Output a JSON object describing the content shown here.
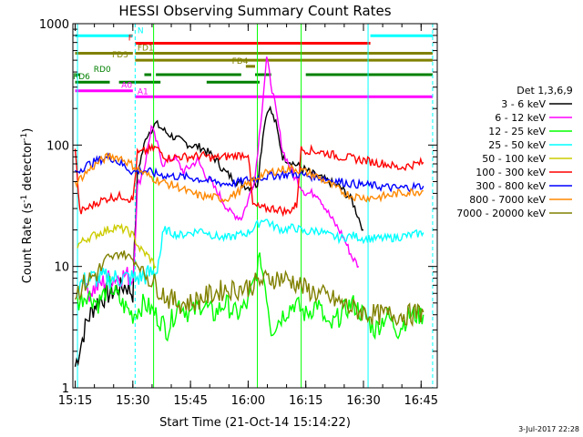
{
  "chart_data": {
    "type": "line",
    "title": "HESSI Observing Summary Count Rates",
    "xlabel": "Start Time (21-Oct-14 15:14:22)",
    "ylabel_main": "Count Rate (s",
    "ylabel_sup": "-1",
    "ylabel_mid": " detector",
    "ylabel_end": ")",
    "x_tick_labels": [
      "15:15",
      "15:30",
      "15:45",
      "16:00",
      "16:15",
      "16:30",
      "16:45"
    ],
    "x_ticks_min": [
      15.25,
      15.5,
      15.75,
      16.0,
      16.25,
      16.5,
      16.75
    ],
    "xlim_hours": [
      15.24,
      16.82
    ],
    "y_scale": "log",
    "ylim": [
      1,
      1000
    ],
    "y_tick_labels": [
      "1",
      "10",
      "100",
      "1000"
    ],
    "y_ticks": [
      1,
      10,
      100,
      1000
    ],
    "legend_title": "Det 1,3,6,9",
    "series": [
      {
        "name": "3 - 6 keV",
        "color": "#000000",
        "points": [
          [
            15.25,
            1.5
          ],
          [
            15.3,
            3.5
          ],
          [
            15.34,
            5
          ],
          [
            15.4,
            6
          ],
          [
            15.47,
            7
          ],
          [
            15.5,
            6
          ],
          [
            15.52,
            60
          ],
          [
            15.56,
            120
          ],
          [
            15.6,
            150
          ],
          [
            15.65,
            125
          ],
          [
            15.7,
            110
          ],
          [
            15.75,
            100
          ],
          [
            15.8,
            95
          ],
          [
            15.85,
            80
          ],
          [
            15.9,
            60
          ],
          [
            15.95,
            50
          ],
          [
            16.0,
            45
          ],
          [
            16.04,
            48
          ],
          [
            16.07,
            150
          ],
          [
            16.09,
            210
          ],
          [
            16.12,
            150
          ],
          [
            16.15,
            80
          ],
          [
            16.2,
            70
          ],
          [
            16.25,
            62
          ],
          [
            16.3,
            55
          ],
          [
            16.35,
            50
          ],
          [
            16.4,
            45
          ],
          [
            16.45,
            35
          ],
          [
            16.48,
            25
          ],
          [
            16.5,
            20
          ]
        ]
      },
      {
        "name": "6 - 12 keV",
        "color": "#ff00ff",
        "points": [
          [
            15.3,
            6
          ],
          [
            15.4,
            8
          ],
          [
            15.47,
            8.5
          ],
          [
            15.5,
            8
          ],
          [
            15.52,
            45
          ],
          [
            15.55,
            65
          ],
          [
            15.58,
            140
          ],
          [
            15.6,
            110
          ],
          [
            15.63,
            70
          ],
          [
            15.68,
            80
          ],
          [
            15.72,
            60
          ],
          [
            15.78,
            75
          ],
          [
            15.82,
            55
          ],
          [
            15.87,
            40
          ],
          [
            15.92,
            28
          ],
          [
            15.97,
            25
          ],
          [
            16.0,
            35
          ],
          [
            16.03,
            55
          ],
          [
            16.06,
            200
          ],
          [
            16.08,
            520
          ],
          [
            16.11,
            250
          ],
          [
            16.15,
            90
          ],
          [
            16.2,
            55
          ],
          [
            16.25,
            40
          ],
          [
            16.3,
            40
          ],
          [
            16.36,
            25
          ],
          [
            16.41,
            18
          ],
          [
            16.45,
            12
          ],
          [
            16.48,
            10
          ]
        ]
      },
      {
        "name": "12 - 25 keV",
        "color": "#00ff00",
        "points": [
          [
            15.26,
            5
          ],
          [
            15.3,
            6
          ],
          [
            15.35,
            5
          ],
          [
            15.4,
            7
          ],
          [
            15.45,
            5
          ],
          [
            15.5,
            4
          ],
          [
            15.55,
            5
          ],
          [
            15.6,
            4
          ],
          [
            15.65,
            3
          ],
          [
            15.7,
            5
          ],
          [
            15.75,
            4
          ],
          [
            15.8,
            5
          ],
          [
            15.85,
            4
          ],
          [
            15.9,
            5
          ],
          [
            15.95,
            4
          ],
          [
            16.0,
            5
          ],
          [
            16.03,
            8
          ],
          [
            16.05,
            12
          ],
          [
            16.08,
            6
          ],
          [
            16.1,
            3
          ],
          [
            16.15,
            4
          ],
          [
            16.2,
            5
          ],
          [
            16.25,
            4
          ],
          [
            16.3,
            5
          ],
          [
            16.35,
            3
          ],
          [
            16.4,
            4
          ],
          [
            16.45,
            5
          ],
          [
            16.5,
            4
          ],
          [
            16.55,
            3
          ],
          [
            16.6,
            4
          ],
          [
            16.65,
            3
          ],
          [
            16.7,
            4
          ],
          [
            16.76,
            4
          ]
        ]
      },
      {
        "name": "25 - 50 keV",
        "color": "#00ffff",
        "points": [
          [
            15.26,
            7
          ],
          [
            15.32,
            8
          ],
          [
            15.4,
            8
          ],
          [
            15.47,
            8
          ],
          [
            15.52,
            8
          ],
          [
            15.6,
            9
          ],
          [
            15.64,
            20
          ],
          [
            15.7,
            18
          ],
          [
            15.75,
            19
          ],
          [
            15.8,
            20
          ],
          [
            15.85,
            18
          ],
          [
            15.9,
            17
          ],
          [
            15.95,
            18
          ],
          [
            16.0,
            19
          ],
          [
            16.04,
            22
          ],
          [
            16.07,
            25
          ],
          [
            16.1,
            22
          ],
          [
            16.15,
            20
          ],
          [
            16.2,
            21
          ],
          [
            16.25,
            19
          ],
          [
            16.3,
            20
          ],
          [
            16.35,
            18
          ],
          [
            16.4,
            17
          ],
          [
            16.45,
            18
          ],
          [
            16.5,
            17
          ],
          [
            16.6,
            17
          ],
          [
            16.7,
            18
          ],
          [
            16.76,
            19
          ]
        ]
      },
      {
        "name": "50 - 100 keV",
        "color": "#cccc00",
        "points": [
          [
            15.26,
            15
          ],
          [
            15.3,
            17
          ],
          [
            15.36,
            19
          ],
          [
            15.42,
            21
          ],
          [
            15.47,
            20
          ],
          [
            15.5,
            18
          ],
          [
            15.53,
            14
          ],
          [
            15.57,
            12
          ],
          [
            15.6,
            10
          ]
        ]
      },
      {
        "name": "100 - 300 keV",
        "color": "#ff0000",
        "points": [
          [
            15.25,
            95
          ],
          [
            15.27,
            28
          ],
          [
            15.3,
            30
          ],
          [
            15.35,
            34
          ],
          [
            15.4,
            37
          ],
          [
            15.46,
            38
          ],
          [
            15.5,
            35
          ],
          [
            15.52,
            85
          ],
          [
            15.56,
            90
          ],
          [
            15.6,
            95
          ],
          [
            15.65,
            78
          ],
          [
            15.7,
            80
          ],
          [
            15.75,
            80
          ],
          [
            15.8,
            82
          ],
          [
            15.85,
            78
          ],
          [
            15.9,
            80
          ],
          [
            15.95,
            82
          ],
          [
            16.0,
            85
          ],
          [
            16.02,
            32
          ],
          [
            16.06,
            30
          ],
          [
            16.12,
            30
          ],
          [
            16.17,
            28
          ],
          [
            16.21,
            32
          ],
          [
            16.23,
            92
          ],
          [
            16.28,
            90
          ],
          [
            16.35,
            85
          ],
          [
            16.4,
            80
          ],
          [
            16.45,
            78
          ],
          [
            16.5,
            75
          ],
          [
            16.55,
            72
          ],
          [
            16.6,
            70
          ],
          [
            16.65,
            65
          ],
          [
            16.7,
            68
          ],
          [
            16.76,
            72
          ]
        ]
      },
      {
        "name": "300 - 800 keV",
        "color": "#0000ff",
        "points": [
          [
            15.25,
            60
          ],
          [
            15.3,
            68
          ],
          [
            15.35,
            75
          ],
          [
            15.4,
            80
          ],
          [
            15.45,
            70
          ],
          [
            15.5,
            60
          ],
          [
            15.55,
            62
          ],
          [
            15.6,
            58
          ],
          [
            15.65,
            56
          ],
          [
            15.7,
            55
          ],
          [
            15.75,
            54
          ],
          [
            15.8,
            52
          ],
          [
            15.85,
            50
          ],
          [
            15.9,
            48
          ],
          [
            15.95,
            49
          ],
          [
            16.0,
            52
          ],
          [
            16.05,
            54
          ],
          [
            16.1,
            56
          ],
          [
            16.15,
            57
          ],
          [
            16.2,
            58
          ],
          [
            16.25,
            56
          ],
          [
            16.3,
            55
          ],
          [
            16.35,
            52
          ],
          [
            16.4,
            50
          ],
          [
            16.45,
            48
          ],
          [
            16.5,
            47
          ],
          [
            16.55,
            46
          ],
          [
            16.6,
            45
          ],
          [
            16.65,
            44
          ],
          [
            16.7,
            45
          ],
          [
            16.76,
            46
          ]
        ]
      },
      {
        "name": "800 - 7000 keV",
        "color": "#ff8800",
        "points": [
          [
            15.25,
            48
          ],
          [
            15.3,
            60
          ],
          [
            15.35,
            72
          ],
          [
            15.4,
            82
          ],
          [
            15.45,
            78
          ],
          [
            15.5,
            68
          ],
          [
            15.55,
            58
          ],
          [
            15.6,
            52
          ],
          [
            15.65,
            48
          ],
          [
            15.7,
            45
          ],
          [
            15.75,
            40
          ],
          [
            15.8,
            38
          ],
          [
            15.85,
            37
          ],
          [
            15.9,
            36
          ],
          [
            15.95,
            40
          ],
          [
            16.0,
            48
          ],
          [
            16.05,
            56
          ],
          [
            16.1,
            60
          ],
          [
            16.15,
            63
          ],
          [
            16.2,
            64
          ],
          [
            16.25,
            60
          ],
          [
            16.3,
            55
          ],
          [
            16.35,
            48
          ],
          [
            16.4,
            42
          ],
          [
            16.45,
            38
          ],
          [
            16.5,
            37
          ],
          [
            16.55,
            37
          ],
          [
            16.6,
            38
          ],
          [
            16.65,
            40
          ],
          [
            16.7,
            41
          ],
          [
            16.76,
            42
          ]
        ]
      },
      {
        "name": "7000 - 20000 keV",
        "color": "#808000",
        "points": [
          [
            15.25,
            6
          ],
          [
            15.3,
            7.5
          ],
          [
            15.35,
            9
          ],
          [
            15.4,
            11.5
          ],
          [
            15.45,
            13
          ],
          [
            15.5,
            11.5
          ],
          [
            15.55,
            9
          ],
          [
            15.6,
            7
          ],
          [
            15.65,
            5.5
          ],
          [
            15.7,
            5
          ],
          [
            15.75,
            5
          ],
          [
            15.8,
            5.5
          ],
          [
            15.85,
            6
          ],
          [
            15.9,
            6.5
          ],
          [
            15.95,
            6.5
          ],
          [
            16.0,
            6.8
          ],
          [
            16.05,
            7.5
          ],
          [
            16.1,
            8
          ],
          [
            16.15,
            8
          ],
          [
            16.2,
            7.5
          ],
          [
            16.25,
            6.5
          ],
          [
            16.3,
            6
          ],
          [
            16.35,
            5.5
          ],
          [
            16.4,
            5
          ],
          [
            16.45,
            4.5
          ],
          [
            16.5,
            4.2
          ],
          [
            16.55,
            4
          ],
          [
            16.6,
            4
          ],
          [
            16.65,
            4
          ],
          [
            16.7,
            4
          ],
          [
            16.76,
            4.2
          ]
        ]
      }
    ],
    "vertical_lines": [
      {
        "x": 15.51,
        "color": "#00ffff",
        "style": "dash"
      },
      {
        "x": 16.52,
        "color": "#00ffff",
        "style": "solid"
      },
      {
        "x": 16.8,
        "color": "#00ffff",
        "style": "dash"
      },
      {
        "x": 15.59,
        "color": "#00ff00",
        "style": "solid"
      },
      {
        "x": 16.04,
        "color": "#00ff00",
        "style": "solid"
      },
      {
        "x": 16.23,
        "color": "#00ff00",
        "style": "solid"
      },
      {
        "x": 15.26,
        "color": "#00ffff",
        "style": "solid"
      }
    ],
    "flag_bars": [
      {
        "label": "N",
        "color": "#00ffff",
        "label_x": 15.52,
        "y": 795,
        "segments": [
          [
            15.25,
            15.5
          ],
          [
            16.53,
            16.8
          ]
        ]
      },
      {
        "label": "F",
        "color": "#ff0000",
        "label_x": 15.48,
        "y": 690,
        "segments": [
          [
            15.51,
            16.53
          ]
        ]
      },
      {
        "label": "FD1",
        "color": "#808000",
        "label_x": 15.52,
        "y": 570,
        "segments": [
          [
            15.25,
            15.5
          ],
          [
            15.51,
            16.8
          ]
        ]
      },
      {
        "label": "FD3",
        "color": "#808000",
        "label_x": 15.41,
        "y": 500,
        "segments": [
          [
            15.51,
            16.8
          ]
        ]
      },
      {
        "label": "FD4",
        "color": "#808000",
        "label_x": 15.93,
        "y": 445,
        "segments": [
          [
            15.99,
            16.03
          ]
        ]
      },
      {
        "label": "RD0",
        "color": "#008000",
        "label_x": 15.33,
        "y": 380,
        "segments": [
          [
            15.25,
            15.27
          ],
          [
            15.55,
            15.58
          ],
          [
            15.6,
            15.97
          ],
          [
            16.03,
            16.1
          ],
          [
            16.25,
            16.8
          ]
        ]
      },
      {
        "label": "RD6",
        "color": "#008000",
        "label_x": 15.24,
        "y": 330,
        "segments": [
          [
            15.25,
            15.4
          ],
          [
            15.44,
            15.62
          ],
          [
            15.82,
            16.05
          ]
        ]
      },
      {
        "label": "A0",
        "color": "#ff00ff",
        "label_x": 15.45,
        "y": 280,
        "segments": [
          [
            15.25,
            15.5
          ]
        ]
      },
      {
        "label": "A1",
        "color": "#ff00ff",
        "label_x": 15.52,
        "y": 250,
        "segments": [
          [
            15.51,
            16.8
          ]
        ]
      }
    ]
  },
  "timestamp": "3-Jul-2017 22:28"
}
